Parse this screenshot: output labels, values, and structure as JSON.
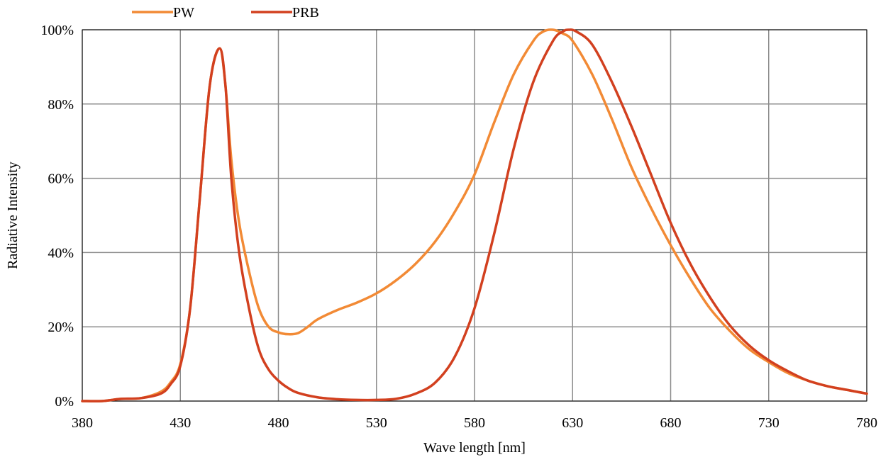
{
  "chart_data": {
    "type": "line",
    "title": "",
    "xlabel": "Wave length [nm]",
    "ylabel": "Radiative Intensity",
    "xlim": [
      380,
      780
    ],
    "ylim": [
      0,
      100
    ],
    "x_ticks": [
      380,
      430,
      480,
      530,
      580,
      630,
      680,
      730,
      780
    ],
    "y_ticks": [
      0,
      20,
      40,
      60,
      80,
      100
    ],
    "x_tick_labels": [
      "380",
      "430",
      "480",
      "530",
      "580",
      "630",
      "680",
      "730",
      "780"
    ],
    "y_tick_labels": [
      "0%",
      "20%",
      "40%",
      "60%",
      "80%",
      "100%"
    ],
    "grid": true,
    "legend": {
      "position": "top-left",
      "entries": [
        "PW",
        "PRB"
      ]
    },
    "series": [
      {
        "name": "PW",
        "color": "#f28a35",
        "x": [
          380,
          390,
          395,
          400,
          410,
          420,
          425,
          430,
          435,
          440,
          445,
          450,
          453,
          456,
          460,
          465,
          470,
          475,
          480,
          485,
          490,
          495,
          500,
          510,
          520,
          530,
          540,
          550,
          560,
          570,
          580,
          590,
          600,
          610,
          615,
          620,
          625,
          630,
          640,
          650,
          660,
          670,
          680,
          690,
          700,
          710,
          720,
          730,
          740,
          750,
          760,
          770,
          780
        ],
        "y": [
          0,
          0,
          0.3,
          0.6,
          0.8,
          2.5,
          5,
          10,
          25,
          55,
          85,
          95,
          85,
          65,
          48,
          35,
          25,
          20,
          18.5,
          18,
          18.3,
          20,
          22,
          24.5,
          26.5,
          29,
          32.5,
          37,
          43,
          51,
          61,
          75,
          88,
          97,
          99.5,
          100,
          99,
          97,
          88,
          76,
          63,
          52,
          42,
          33,
          25,
          19,
          14,
          10.5,
          7.5,
          5.5,
          4,
          3,
          2
        ]
      },
      {
        "name": "PRB",
        "color": "#d2401f",
        "x": [
          380,
          390,
          395,
          400,
          410,
          420,
          425,
          430,
          435,
          440,
          445,
          450,
          453,
          456,
          460,
          465,
          470,
          475,
          480,
          485,
          490,
          500,
          510,
          520,
          530,
          540,
          550,
          560,
          570,
          580,
          590,
          600,
          610,
          620,
          625,
          628,
          632,
          640,
          650,
          660,
          670,
          680,
          690,
          700,
          710,
          720,
          730,
          740,
          750,
          760,
          770,
          780
        ],
        "y": [
          0,
          0,
          0.3,
          0.6,
          0.8,
          2,
          4.5,
          9.5,
          25,
          55,
          85,
          95,
          85,
          60,
          40,
          25,
          14,
          8.5,
          5.5,
          3.5,
          2.2,
          1,
          0.5,
          0.3,
          0.3,
          0.6,
          2,
          5,
          12,
          25,
          45,
          68,
          86,
          97,
          99.5,
          100,
          99.5,
          96,
          86,
          74,
          61,
          48,
          37,
          28,
          20.5,
          15,
          11,
          8,
          5.5,
          4,
          3,
          2
        ]
      }
    ]
  }
}
